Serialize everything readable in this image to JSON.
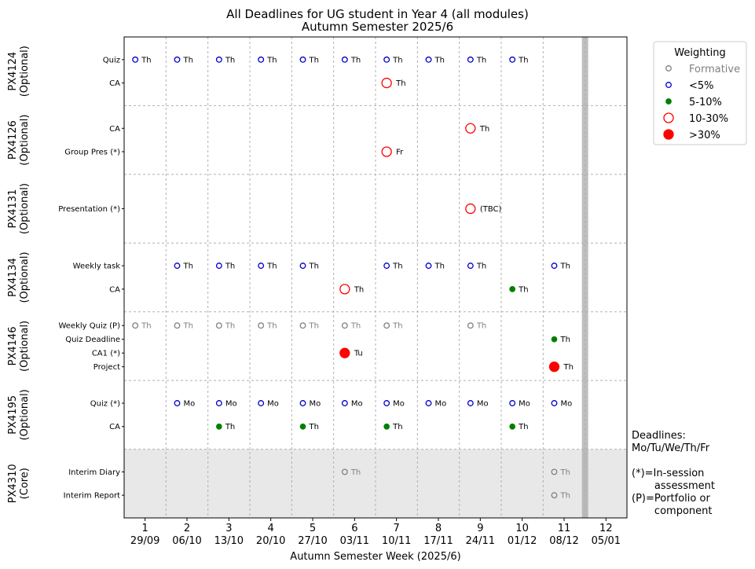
{
  "chart_data": {
    "type": "scatter",
    "title": "All Deadlines for UG student in Year 4 (all modules)",
    "subtitle": "Autumn Semester 2025/6",
    "xlabel": "Autumn Semester Week (2025/6)",
    "weeks": [
      "1",
      "2",
      "3",
      "4",
      "5",
      "6",
      "7",
      "8",
      "9",
      "10",
      "11",
      "12"
    ],
    "week_dates": [
      "29/09",
      "06/10",
      "13/10",
      "20/10",
      "27/10",
      "03/11",
      "10/11",
      "17/11",
      "24/11",
      "01/12",
      "08/12",
      "05/01"
    ],
    "xlim": [
      0.5,
      12.5
    ],
    "grid": true,
    "break_week": 11.5,
    "legend": {
      "title": "Weighting",
      "placement": "outside-top-right",
      "items": [
        {
          "key": "formative",
          "label": "Formative"
        },
        {
          "key": "lt5",
          "label": "<5%"
        },
        {
          "key": "5to10",
          "label": "5-10%"
        },
        {
          "key": "10to30",
          "label": "10-30%"
        },
        {
          "key": "gt30",
          "label": ">30%"
        }
      ]
    },
    "styles": {
      "formative": {
        "color": "#808080",
        "filled": false,
        "size": "small"
      },
      "lt5": {
        "color": "#0000cc",
        "filled": false,
        "size": "small"
      },
      "5to10": {
        "color": "#008000",
        "filled": true,
        "size": "small"
      },
      "10to30": {
        "color": "#ff0000",
        "filled": false,
        "size": "large"
      },
      "gt30": {
        "color": "#ff0000",
        "filled": true,
        "size": "large"
      }
    },
    "core_shading": "#e8e8e8",
    "modules": [
      {
        "name": "PX4124",
        "type": "(Optional)",
        "assessments": [
          {
            "label": "Quiz",
            "deadlines": [
              {
                "week": 1,
                "day": "Th",
                "w": "lt5"
              },
              {
                "week": 2,
                "day": "Th",
                "w": "lt5"
              },
              {
                "week": 3,
                "day": "Th",
                "w": "lt5"
              },
              {
                "week": 4,
                "day": "Th",
                "w": "lt5"
              },
              {
                "week": 5,
                "day": "Th",
                "w": "lt5"
              },
              {
                "week": 6,
                "day": "Th",
                "w": "lt5"
              },
              {
                "week": 7,
                "day": "Th",
                "w": "lt5"
              },
              {
                "week": 8,
                "day": "Th",
                "w": "lt5"
              },
              {
                "week": 9,
                "day": "Th",
                "w": "lt5"
              },
              {
                "week": 10,
                "day": "Th",
                "w": "lt5"
              }
            ]
          },
          {
            "label": "CA",
            "deadlines": [
              {
                "week": 7,
                "day": "Th",
                "w": "10to30"
              }
            ]
          }
        ]
      },
      {
        "name": "PX4126",
        "type": "(Optional)",
        "assessments": [
          {
            "label": "CA",
            "deadlines": [
              {
                "week": 9,
                "day": "Th",
                "w": "10to30"
              }
            ]
          },
          {
            "label": "Group Pres (*)",
            "deadlines": [
              {
                "week": 7,
                "day": "Fr",
                "w": "10to30"
              }
            ]
          }
        ]
      },
      {
        "name": "PX4131",
        "type": "(Optional)",
        "assessments": [
          {
            "label": "Presentation (*)",
            "deadlines": [
              {
                "week": 9,
                "day": "(TBC)",
                "w": "10to30"
              }
            ]
          }
        ]
      },
      {
        "name": "PX4134",
        "type": "(Optional)",
        "assessments": [
          {
            "label": "Weekly task",
            "deadlines": [
              {
                "week": 2,
                "day": "Th",
                "w": "lt5"
              },
              {
                "week": 3,
                "day": "Th",
                "w": "lt5"
              },
              {
                "week": 4,
                "day": "Th",
                "w": "lt5"
              },
              {
                "week": 5,
                "day": "Th",
                "w": "lt5"
              },
              {
                "week": 7,
                "day": "Th",
                "w": "lt5"
              },
              {
                "week": 8,
                "day": "Th",
                "w": "lt5"
              },
              {
                "week": 9,
                "day": "Th",
                "w": "lt5"
              },
              {
                "week": 11,
                "day": "Th",
                "w": "lt5"
              }
            ]
          },
          {
            "label": "CA",
            "deadlines": [
              {
                "week": 6,
                "day": "Th",
                "w": "10to30"
              },
              {
                "week": 10,
                "day": "Th",
                "w": "5to10"
              }
            ]
          }
        ]
      },
      {
        "name": "PX4146",
        "type": "(Optional)",
        "assessments": [
          {
            "label": "Weekly Quiz (P)",
            "deadlines": [
              {
                "week": 1,
                "day": "Th",
                "w": "formative"
              },
              {
                "week": 2,
                "day": "Th",
                "w": "formative"
              },
              {
                "week": 3,
                "day": "Th",
                "w": "formative"
              },
              {
                "week": 4,
                "day": "Th",
                "w": "formative"
              },
              {
                "week": 5,
                "day": "Th",
                "w": "formative"
              },
              {
                "week": 6,
                "day": "Th",
                "w": "formative"
              },
              {
                "week": 7,
                "day": "Th",
                "w": "formative"
              },
              {
                "week": 9,
                "day": "Th",
                "w": "formative"
              }
            ]
          },
          {
            "label": "Quiz Deadline",
            "deadlines": [
              {
                "week": 11,
                "day": "Th",
                "w": "5to10"
              }
            ]
          },
          {
            "label": "CA1 (*)",
            "deadlines": [
              {
                "week": 6,
                "day": "Tu",
                "w": "gt30"
              }
            ]
          },
          {
            "label": "Project",
            "deadlines": [
              {
                "week": 11,
                "day": "Th",
                "w": "gt30"
              }
            ]
          }
        ]
      },
      {
        "name": "PX4195",
        "type": "(Optional)",
        "assessments": [
          {
            "label": "Quiz (*)",
            "deadlines": [
              {
                "week": 2,
                "day": "Mo",
                "w": "lt5"
              },
              {
                "week": 3,
                "day": "Mo",
                "w": "lt5"
              },
              {
                "week": 4,
                "day": "Mo",
                "w": "lt5"
              },
              {
                "week": 5,
                "day": "Mo",
                "w": "lt5"
              },
              {
                "week": 6,
                "day": "Mo",
                "w": "lt5"
              },
              {
                "week": 7,
                "day": "Mo",
                "w": "lt5"
              },
              {
                "week": 8,
                "day": "Mo",
                "w": "lt5"
              },
              {
                "week": 9,
                "day": "Mo",
                "w": "lt5"
              },
              {
                "week": 10,
                "day": "Mo",
                "w": "lt5"
              },
              {
                "week": 11,
                "day": "Mo",
                "w": "lt5"
              }
            ]
          },
          {
            "label": "CA",
            "deadlines": [
              {
                "week": 3,
                "day": "Th",
                "w": "5to10"
              },
              {
                "week": 5,
                "day": "Th",
                "w": "5to10"
              },
              {
                "week": 7,
                "day": "Th",
                "w": "5to10"
              },
              {
                "week": 10,
                "day": "Th",
                "w": "5to10"
              }
            ]
          }
        ]
      },
      {
        "name": "PX4310",
        "type": "(Core)",
        "core": true,
        "assessments": [
          {
            "label": "Interim Diary",
            "deadlines": [
              {
                "week": 6,
                "day": "Th",
                "w": "formative"
              },
              {
                "week": 11,
                "day": "Th",
                "w": "formative"
              }
            ]
          },
          {
            "label": "Interim Report",
            "deadlines": [
              {
                "week": 11,
                "day": "Th",
                "w": "formative"
              }
            ]
          }
        ]
      }
    ]
  },
  "notes": "Deadlines:\nMo/Tu/We/Th/Fr\n\n(*)=In-session\n       assessment\n(P)=Portfolio or\n       component"
}
